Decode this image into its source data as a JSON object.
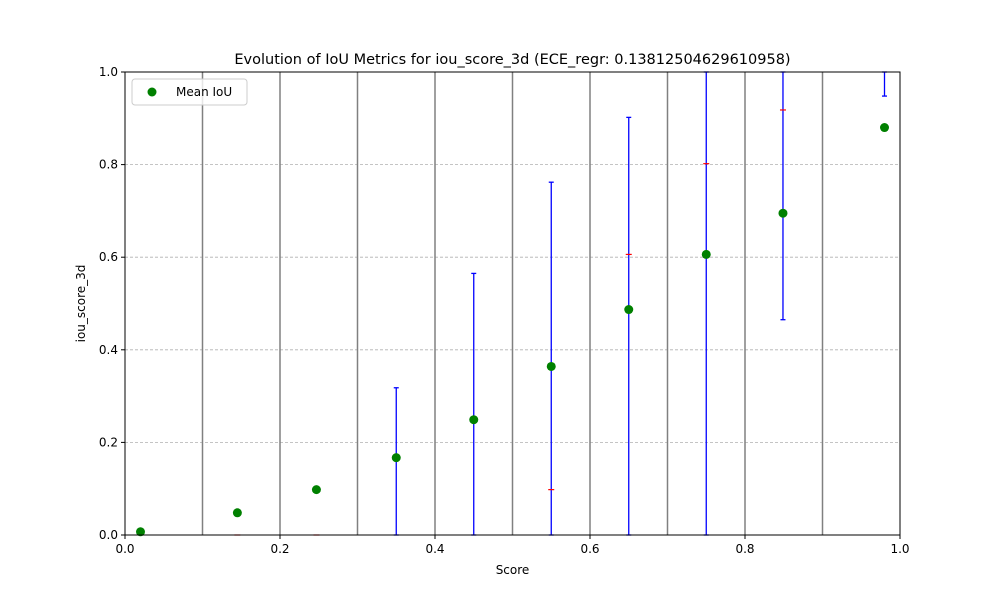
{
  "chart_data": {
    "type": "scatter",
    "title": "Evolution of IoU Metrics for iou_score_3d (ECE_regr: 0.13812504629610958)",
    "xlabel": "Score",
    "ylabel": "iou_score_3d",
    "xlim": [
      0,
      1
    ],
    "ylim": [
      0,
      1
    ],
    "xticks": [
      "0.0",
      "0.2",
      "0.4",
      "0.6",
      "0.8",
      "1.0"
    ],
    "yticks": [
      "0.0",
      "0.2",
      "0.4",
      "0.6",
      "0.8",
      "1.0"
    ],
    "grid": "horizontal dashed",
    "bin_edges": [
      0.1,
      0.2,
      0.3,
      0.4,
      0.5,
      0.6,
      0.7,
      0.8,
      0.9
    ],
    "legend": {
      "placement": "upper-left",
      "entries": [
        "Mean IoU"
      ]
    },
    "series": [
      {
        "name": "Mean IoU",
        "color": "#008000",
        "points": [
          {
            "x": 0.02,
            "y": 0.007
          },
          {
            "x": 0.145,
            "y": 0.048
          },
          {
            "x": 0.247,
            "y": 0.098
          },
          {
            "x": 0.35,
            "y": 0.167
          },
          {
            "x": 0.45,
            "y": 0.249
          },
          {
            "x": 0.55,
            "y": 0.364
          },
          {
            "x": 0.65,
            "y": 0.487
          },
          {
            "x": 0.75,
            "y": 0.606
          },
          {
            "x": 0.849,
            "y": 0.695
          },
          {
            "x": 0.98,
            "y": 0.88
          }
        ]
      }
    ],
    "error_bars": {
      "color": "#0000ff",
      "items": [
        {
          "x": 0.35,
          "low": 0.0,
          "high": 0.318
        },
        {
          "x": 0.45,
          "low": 0.0,
          "high": 0.565
        },
        {
          "x": 0.55,
          "low": 0.0,
          "high": 0.762
        },
        {
          "x": 0.65,
          "low": 0.0,
          "high": 0.902
        },
        {
          "x": 0.75,
          "low": 0.0,
          "high": 1.0
        },
        {
          "x": 0.849,
          "low": 0.465,
          "high": 1.0
        },
        {
          "x": 0.98,
          "low": 0.948,
          "high": 1.0
        }
      ]
    },
    "red_markers": {
      "color": "#ff0000",
      "items": [
        {
          "x": 0.145,
          "y": 0.0
        },
        {
          "x": 0.247,
          "y": 0.0
        },
        {
          "x": 0.55,
          "y": 0.098
        },
        {
          "x": 0.65,
          "y": 0.606
        },
        {
          "x": 0.75,
          "y": 0.802
        },
        {
          "x": 0.849,
          "y": 0.918
        }
      ]
    },
    "colors": {
      "bin_line": "#808080",
      "grid": "#b0b0b0",
      "axis": "#000000"
    }
  }
}
